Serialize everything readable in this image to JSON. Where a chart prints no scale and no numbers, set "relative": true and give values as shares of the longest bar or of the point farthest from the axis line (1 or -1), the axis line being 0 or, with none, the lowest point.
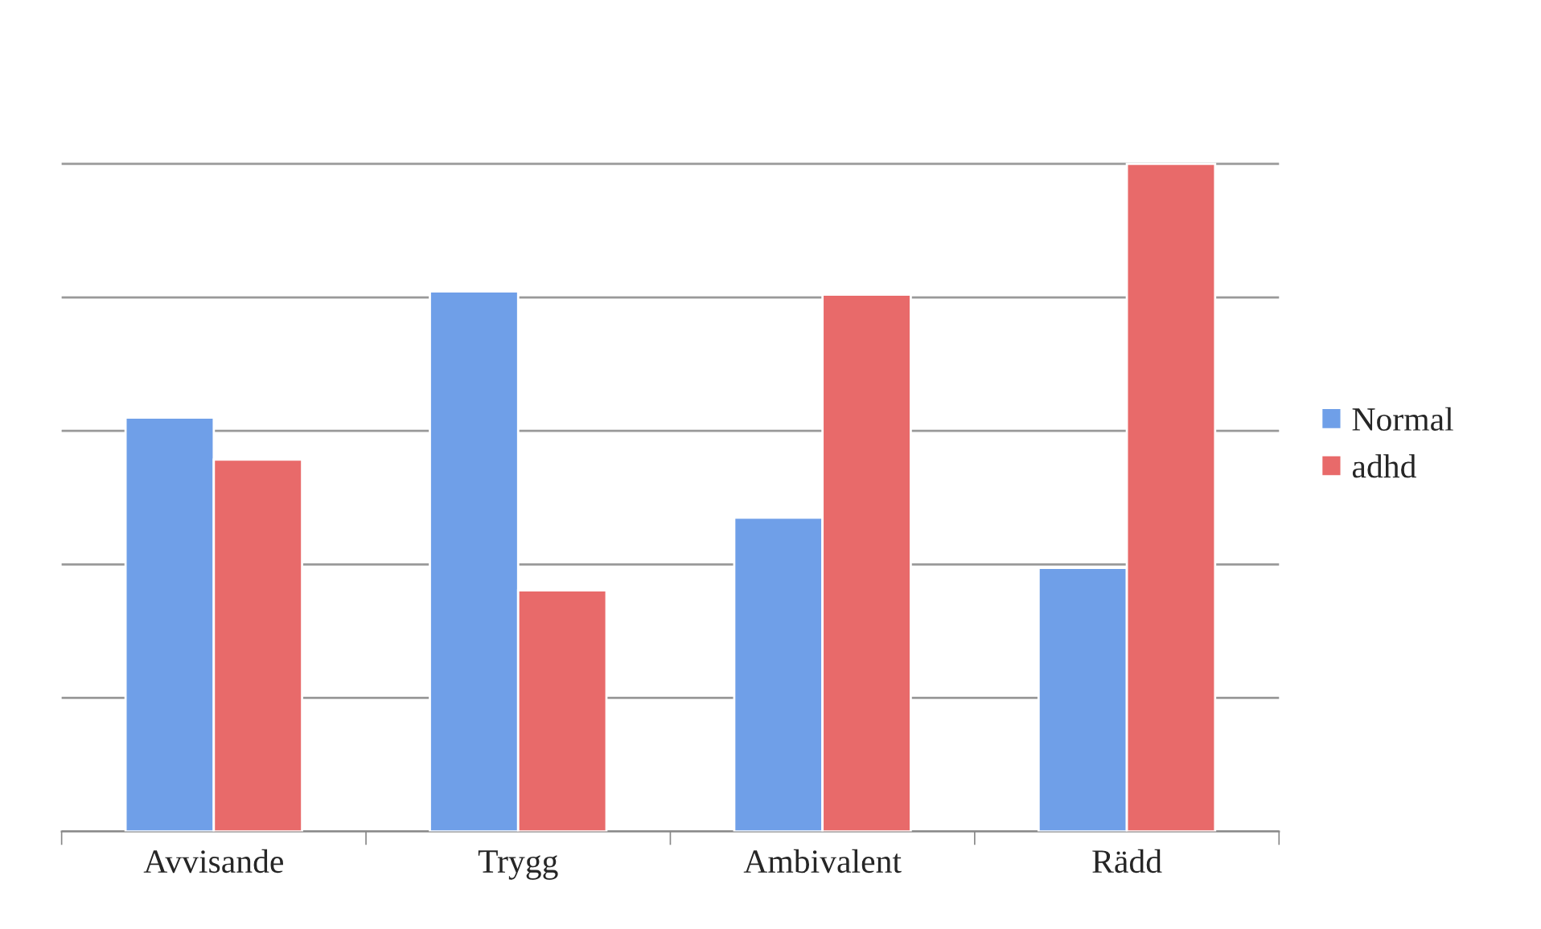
{
  "chart_data": {
    "type": "bar",
    "relative": true,
    "categories": [
      "Avvisande",
      "Trygg",
      "Ambivalent",
      "Rädd"
    ],
    "series": [
      {
        "name": "Normal",
        "color": "#6f9fe8",
        "values": [
          0.62,
          0.809,
          0.47,
          0.395
        ]
      },
      {
        "name": "adhd",
        "color": "#e86a6a",
        "values": [
          0.557,
          0.361,
          0.804,
          1.0
        ]
      }
    ],
    "grid": "y",
    "legend": "right"
  }
}
